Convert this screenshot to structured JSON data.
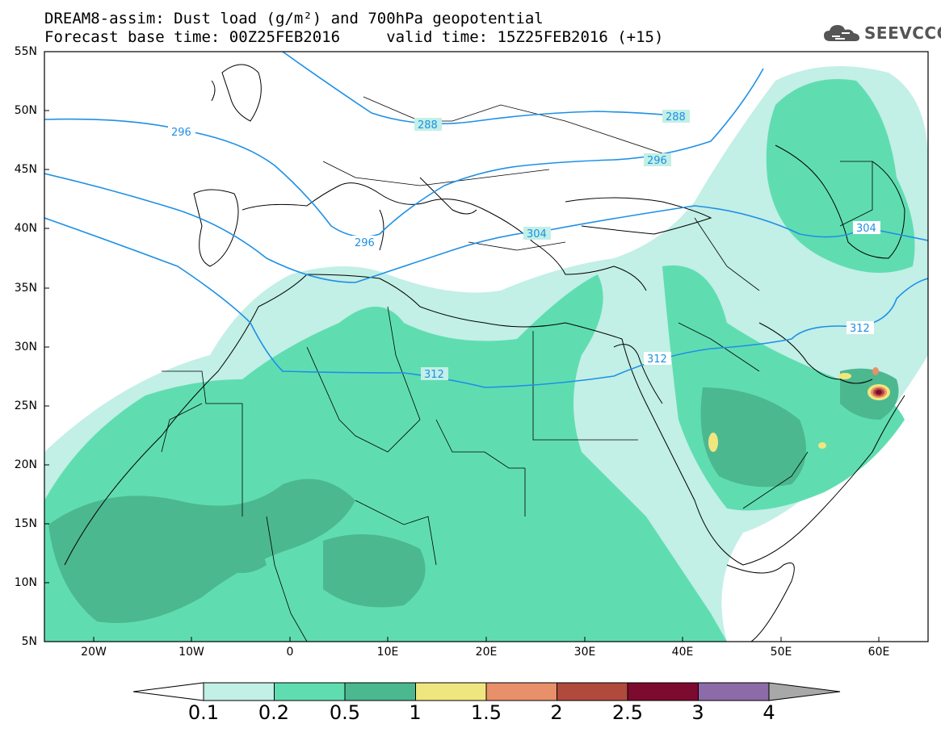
{
  "header": {
    "title_line1": "DREAM8-assim: Dust load (g/m²) and 700hPa geopotential",
    "title_line2": "Forecast base time: 00Z25FEB2016     valid time: 15Z25FEB2016 (+15)"
  },
  "logo": {
    "text": "SEEVCCC",
    "icon": "cloud-icon"
  },
  "map": {
    "region": {
      "lon_min": -25,
      "lon_max": 65,
      "lat_min": 5,
      "lat_max": 55
    },
    "lat_labels": [
      "55N",
      "50N",
      "45N",
      "40N",
      "35N",
      "30N",
      "25N",
      "20N",
      "15N",
      "10N",
      "5N"
    ],
    "lon_labels": [
      "20W",
      "10W",
      "0",
      "10E",
      "20E",
      "30E",
      "40E",
      "50E",
      "60E"
    ],
    "contour_labels": [
      "296",
      "288",
      "288",
      "296",
      "296",
      "304",
      "304",
      "312",
      "312",
      "312"
    ],
    "contour_color": "#1e90e6"
  },
  "colorbar": {
    "labels": [
      "0.1",
      "0.2",
      "0.5",
      "1",
      "1.5",
      "2",
      "2.5",
      "3",
      "4"
    ],
    "colors": [
      "#c2efe6",
      "#5fddb1",
      "#4cb88f",
      "#f0e680",
      "#e8906a",
      "#b04a3d",
      "#7d0a2f",
      "#8c6ba8",
      "#a8a8a8"
    ],
    "low_triangle_color": "#ffffff",
    "high_triangle_color": "#a8a8a8"
  }
}
